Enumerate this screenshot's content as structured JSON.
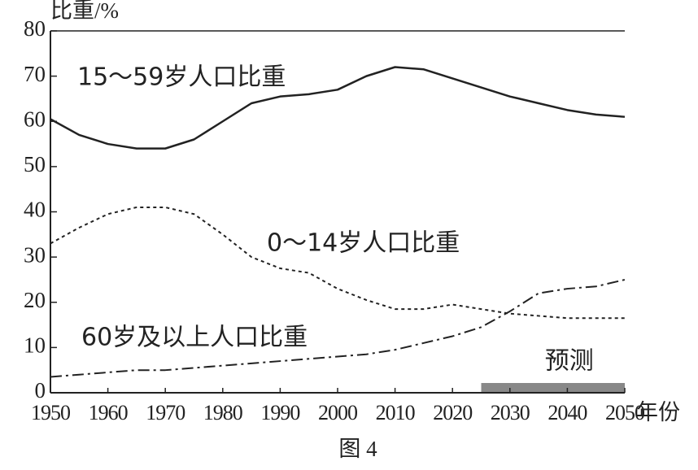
{
  "chart_data": {
    "type": "line",
    "y_label": "比重/%",
    "x_label": "年份",
    "caption": "图 4",
    "x": [
      1950,
      1955,
      1960,
      1965,
      1970,
      1975,
      1980,
      1985,
      1990,
      1995,
      2000,
      2005,
      2010,
      2015,
      2020,
      2025,
      2030,
      2035,
      2040,
      2045,
      2050
    ],
    "series": [
      {
        "name": "15～59岁人口比重",
        "color": "#222222",
        "dash": "solid",
        "values": [
          60.5,
          57,
          55,
          54,
          54,
          56,
          60,
          64,
          65.5,
          66,
          67,
          70,
          72,
          71.5,
          69.5,
          67.5,
          65.5,
          64,
          62.5,
          61.5,
          61
        ]
      },
      {
        "name": "0～14岁人口比重",
        "color": "#222222",
        "dash": "dotted",
        "values": [
          33,
          36.5,
          39.5,
          41,
          41,
          39.5,
          35,
          30,
          27.5,
          26.5,
          23,
          20.5,
          18.5,
          18.5,
          19.5,
          18.5,
          17.5,
          17,
          16.5,
          16.5,
          16.5
        ]
      },
      {
        "name": "60岁及以上人口比重",
        "color": "#222222",
        "dash": "dashdot",
        "values": [
          3.5,
          4,
          4.5,
          5,
          5,
          5.5,
          6,
          6.5,
          7,
          7.5,
          8,
          8.5,
          9.5,
          11,
          12.5,
          14.5,
          18,
          22,
          23,
          23.5,
          25
        ]
      }
    ],
    "forecast": {
      "label": "预测",
      "start": 2025,
      "end": 2050,
      "color": "#888888"
    },
    "xlim": [
      1950,
      2050
    ],
    "xticks": [
      1950,
      1960,
      1970,
      1980,
      1990,
      2000,
      2010,
      2020,
      2030,
      2040,
      2050
    ],
    "ylim": [
      0,
      80
    ],
    "yticks": [
      0,
      10,
      20,
      30,
      40,
      50,
      60,
      70,
      80
    ]
  }
}
